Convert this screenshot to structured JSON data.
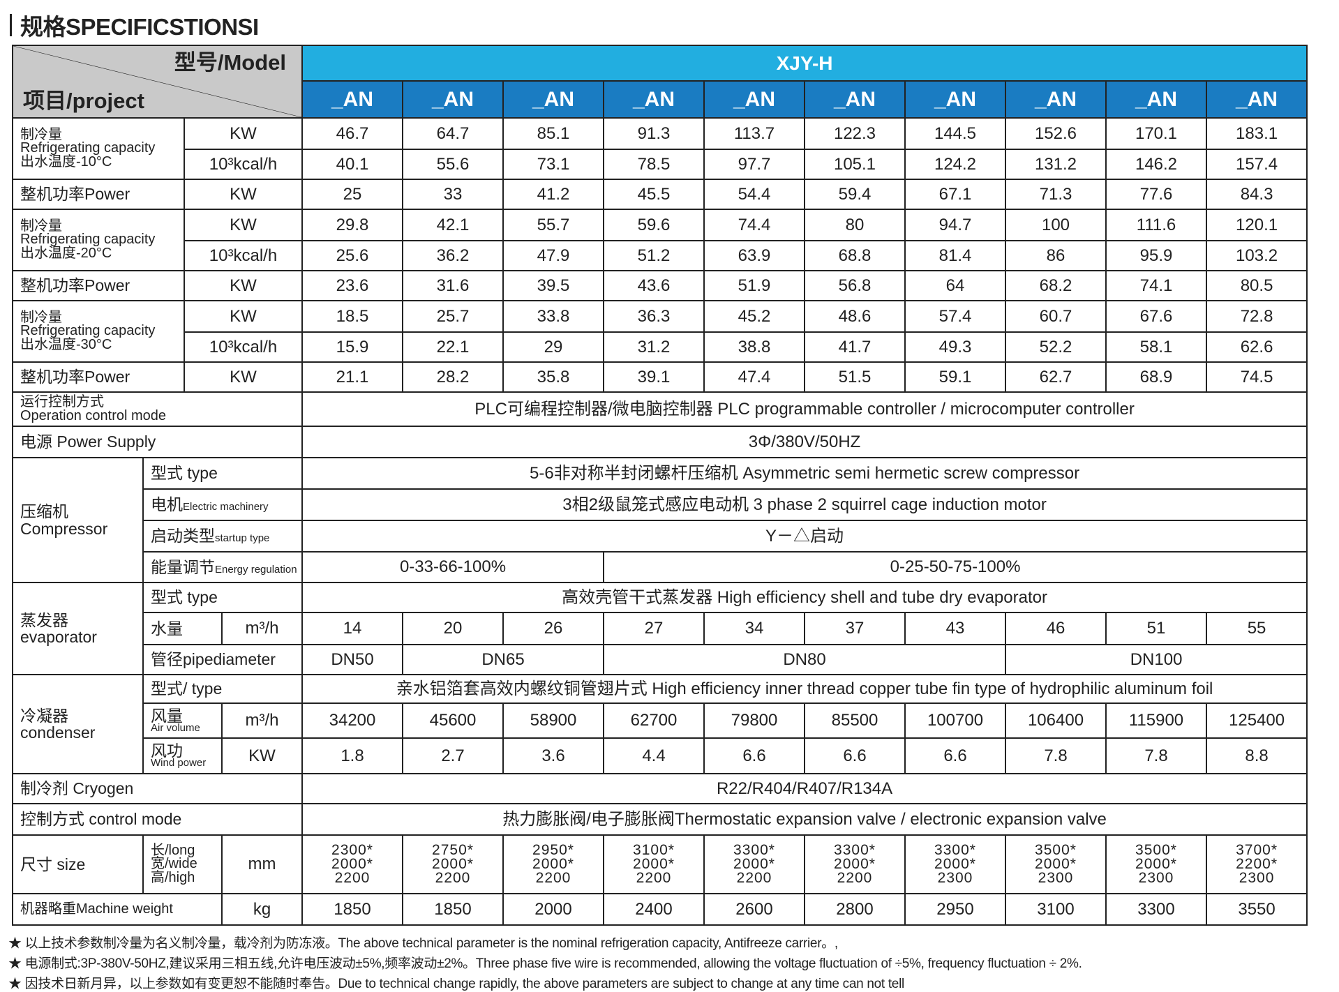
{
  "title": "规格SPECIFICSTIONSI",
  "header": {
    "model_label": "型号/Model",
    "project_label": "项目/project",
    "series": "XJY-H",
    "models": [
      "_AN",
      "_AN",
      "_AN",
      "_AN",
      "_AN",
      "_AN",
      "_AN",
      "_AN",
      "_AN",
      "_AN"
    ]
  },
  "units": {
    "kw": "KW",
    "kcal": "10³kcal/h",
    "m3h": "m³/h",
    "mm": "mm",
    "kg": "kg"
  },
  "cooling": [
    {
      "label": "制冷量\nRefrigerating capacity\n出水温度-10°C",
      "kw": [
        "46.7",
        "64.7",
        "85.1",
        "91.3",
        "113.7",
        "122.3",
        "144.5",
        "152.6",
        "170.1",
        "183.1"
      ],
      "kcal": [
        "40.1",
        "55.6",
        "73.1",
        "78.5",
        "97.7",
        "105.1",
        "124.2",
        "131.2",
        "146.2",
        "157.4"
      ],
      "power_label": "整机功率Power",
      "power": [
        "25",
        "33",
        "41.2",
        "45.5",
        "54.4",
        "59.4",
        "67.1",
        "71.3",
        "77.6",
        "84.3"
      ]
    },
    {
      "label": "制冷量\nRefrigerating capacity\n出水温度-20°C",
      "kw": [
        "29.8",
        "42.1",
        "55.7",
        "59.6",
        "74.4",
        "80",
        "94.7",
        "100",
        "111.6",
        "120.1"
      ],
      "kcal": [
        "25.6",
        "36.2",
        "47.9",
        "51.2",
        "63.9",
        "68.8",
        "81.4",
        "86",
        "95.9",
        "103.2"
      ],
      "power_label": "整机功率Power",
      "power": [
        "23.6",
        "31.6",
        "39.5",
        "43.6",
        "51.9",
        "56.8",
        "64",
        "68.2",
        "74.1",
        "80.5"
      ]
    },
    {
      "label": "制冷量\nRefrigerating capacity\n出水温度-30°C",
      "kw": [
        "18.5",
        "25.7",
        "33.8",
        "36.3",
        "45.2",
        "48.6",
        "57.4",
        "60.7",
        "67.6",
        "72.8"
      ],
      "kcal": [
        "15.9",
        "22.1",
        "29",
        "31.2",
        "38.8",
        "41.7",
        "49.3",
        "52.2",
        "58.1",
        "62.6"
      ],
      "power_label": "整机功率Power",
      "power": [
        "21.1",
        "28.2",
        "35.8",
        "39.1",
        "47.4",
        "51.5",
        "59.1",
        "62.7",
        "68.9",
        "74.5"
      ]
    }
  ],
  "operation": {
    "label": "运行控制方式\nOperation control mode",
    "value": "PLC可编程控制器/微电脑控制器 PLC programmable controller / microcomputer controller"
  },
  "power_supply": {
    "label": "电源 Power Supply",
    "value": "3Φ/380V/50HZ"
  },
  "compressor": {
    "label": "压缩机\nCompressor",
    "type_label": "型式 type",
    "type": "5-6非对称半封闭螺杆压缩机 Asymmetric semi hermetic screw compressor",
    "motor_label_cn": "电机",
    "motor_label_en": "Electric machinery",
    "motor": "3相2级鼠笼式感应电动机 3 phase 2 squirrel cage induction motor",
    "startup_label_cn": "启动类型",
    "startup_label_en": "startup type",
    "startup": "Y－△启动",
    "energy_label_cn": "能量调节",
    "energy_label_en": "Energy regulation",
    "energy": [
      "0-33-66-100%",
      "0-25-50-75-100%"
    ]
  },
  "evaporator": {
    "label": "蒸发器\nevaporator",
    "type_label": "型式 type",
    "type": "高效壳管干式蒸发器 High efficiency shell and tube dry evaporator",
    "water_label": "水量",
    "water": [
      "14",
      "20",
      "26",
      "27",
      "34",
      "37",
      "43",
      "46",
      "51",
      "55"
    ],
    "pipe_label": "管径pipediameter",
    "pipe": [
      "DN50",
      "DN65",
      "DN80",
      "DN100"
    ]
  },
  "condenser": {
    "label": "冷凝器\ncondenser",
    "type_label": "型式/ type",
    "type": "亲水铝箔套高效内螺纹铜管翅片式 High efficiency inner thread copper tube fin type of hydrophilic aluminum foil",
    "air_label_cn": "风量",
    "air_label_en": "Air volume",
    "air": [
      "34200",
      "45600",
      "58900",
      "62700",
      "79800",
      "85500",
      "100700",
      "106400",
      "115900",
      "125400"
    ],
    "wind_label_cn": "风功",
    "wind_label_en": "Wind power",
    "wind": [
      "1.8",
      "2.7",
      "3.6",
      "4.4",
      "6.6",
      "6.6",
      "6.6",
      "7.8",
      "7.8",
      "8.8"
    ]
  },
  "cryogen": {
    "label": "制冷剂 Cryogen",
    "value": "R22/R404/R407/R134A"
  },
  "control": {
    "label": "控制方式 control mode",
    "value": "热力膨胀阀/电子膨胀阀Thermostatic expansion valve / electronic expansion valve"
  },
  "size": {
    "label": "尺寸 size",
    "dims": "长/long\n宽/wide\n高/high",
    "values": [
      "2300*\n2000*\n2200",
      "2750*\n2000*\n2200",
      "2950*\n2000*\n2200",
      "3100*\n2000*\n2200",
      "3300*\n2000*\n2200",
      "3300*\n2000*\n2200",
      "3300*\n2000*\n2300",
      "3500*\n2000*\n2300",
      "3500*\n2000*\n2300",
      "3700*\n2200*\n2300"
    ]
  },
  "weight": {
    "label": "机器略重Machine weight",
    "values": [
      "1850",
      "1850",
      "2000",
      "2400",
      "2600",
      "2800",
      "2950",
      "3100",
      "3300",
      "3550"
    ]
  },
  "notes": [
    "★  以上技术参数制冷量为名义制冷量，载冷剂为防冻液。The above technical parameter is the nominal refrigeration capacity, Antifreeze carrier。,",
    "★  电源制式:3P-380V-50HZ,建议采用三相五线,允许电压波动±5%,频率波动±2%。Three phase five wire is recommended, allowing the voltage fluctuation of ÷5%, frequency fluctuation ÷ 2%.",
    "★  因技术日新月异，以上参数如有变更恕不能随时奉告。Due to technical change rapidly, the above parameters are subject to change at any time can not tell"
  ],
  "colors": {
    "series_bg": "#22aee0",
    "model_bg": "#1a7cc2",
    "header_gray": "#c9c9c9"
  }
}
